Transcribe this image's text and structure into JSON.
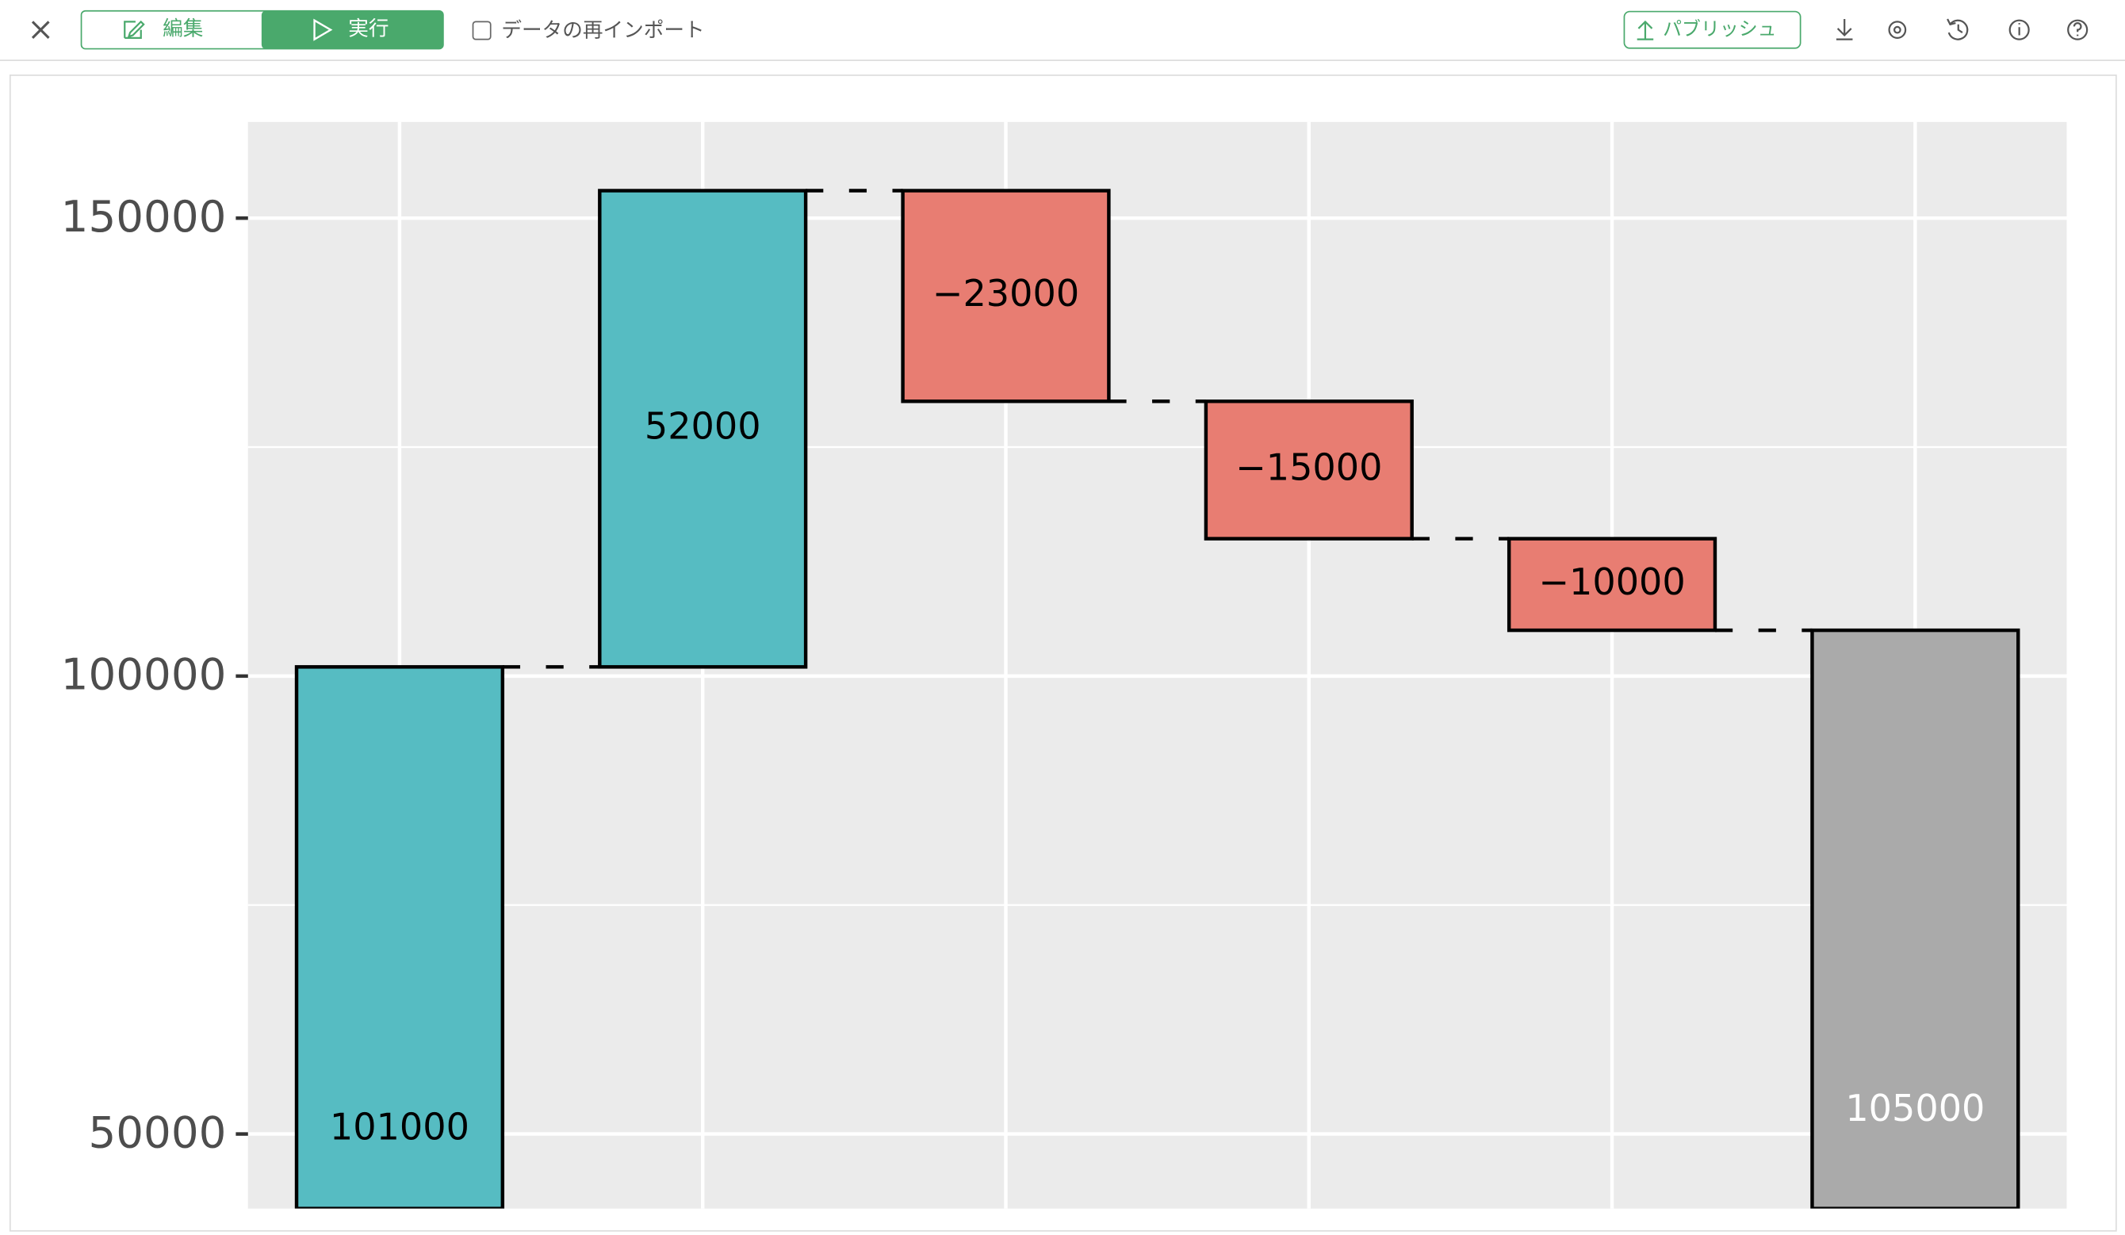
{
  "toolbar": {
    "edit": "編集",
    "run": "実行",
    "reimport": "データの再インポート",
    "publish": "パブリッシュ"
  },
  "chart_data": {
    "type": "waterfall",
    "categories": [
      null,
      null,
      null,
      null,
      null,
      null
    ],
    "values": [
      101000,
      52000,
      -23000,
      -15000,
      -10000,
      105000
    ],
    "value_labels": [
      "101000",
      "52000",
      "−23000",
      "−15000",
      "−10000",
      "105000"
    ],
    "measure": [
      "absolute",
      "relative",
      "relative",
      "relative",
      "relative",
      "total"
    ],
    "increasing_color": "#56bcc2",
    "decreasing_color": "#e87d72",
    "total_color": "#aaaaaa",
    "total_label_color": "#ffffff",
    "ylim": [
      41860,
      160500
    ],
    "yticks": [
      50000,
      100000,
      150000
    ],
    "minor_yticks": [
      75000,
      125000
    ],
    "grid": true
  }
}
